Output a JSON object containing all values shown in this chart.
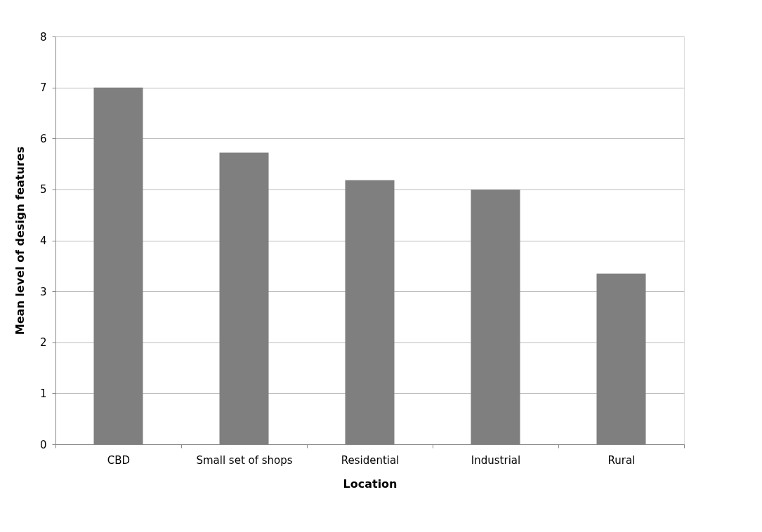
{
  "chart_data": {
    "type": "bar",
    "xlabel": "Location",
    "ylabel": "Mean level of design features",
    "categories": [
      "CBD",
      "Small set of shops",
      "Residential",
      "Industrial",
      "Rural"
    ],
    "values": [
      7.0,
      5.72,
      5.18,
      5.0,
      3.35
    ],
    "color": "#7f7f7f",
    "ylim": [
      0,
      8
    ],
    "yticks": [
      0,
      1,
      2,
      3,
      4,
      5,
      6,
      7,
      8
    ],
    "grid": "y",
    "legend": false
  }
}
